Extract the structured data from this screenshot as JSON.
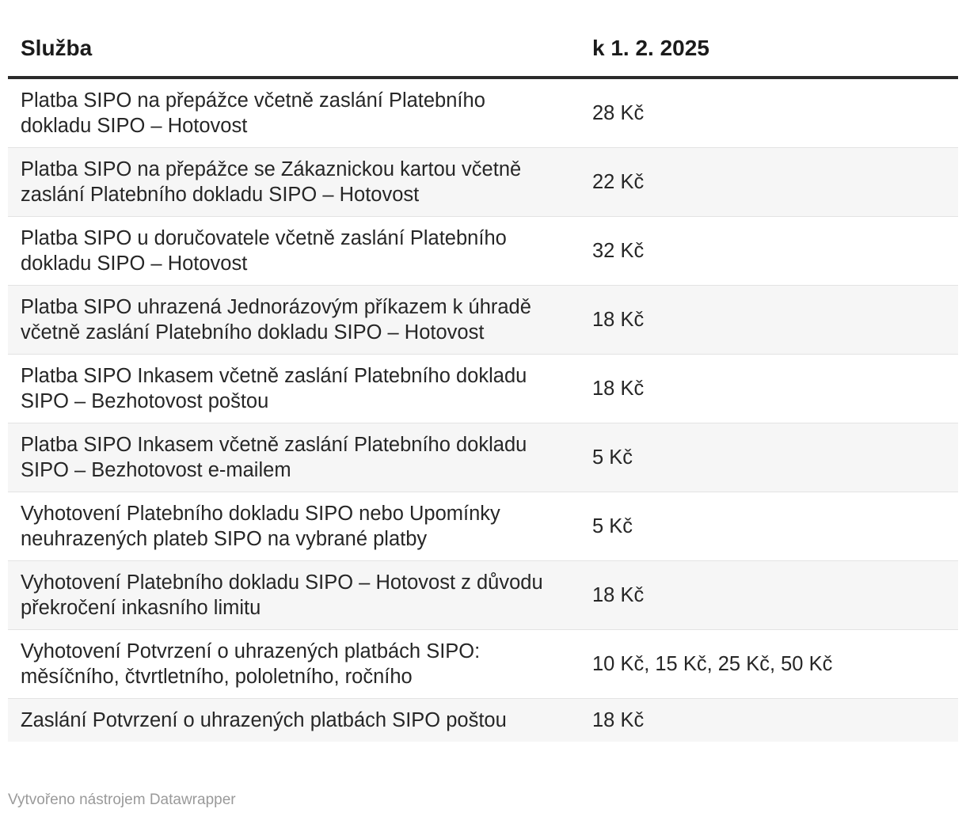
{
  "table": {
    "headers": [
      "Služba",
      "k 1. 2. 2025"
    ],
    "rows": [
      {
        "service": "Platba SIPO na přepážce včetně zaslání Platebního dokladu SIPO – Hotovost",
        "price": "28 Kč"
      },
      {
        "service": "Platba SIPO na přepážce se Zákaznickou kartou včetně zaslání Platebního dokladu SIPO – Hotovost",
        "price": "22 Kč"
      },
      {
        "service": "Platba SIPO u doručovatele včetně zaslání Platebního dokladu SIPO – Hotovost",
        "price": "32 Kč"
      },
      {
        "service": "Platba SIPO uhrazená Jednorázovým příkazem k úhradě včetně zaslání Platebního dokladu SIPO – Hotovost",
        "price": "18 Kč"
      },
      {
        "service": "Platba SIPO Inkasem včetně zaslání Platebního dokladu SIPO – Bezhotovost poštou",
        "price": "18 Kč"
      },
      {
        "service": "Platba SIPO Inkasem včetně zaslání Platebního dokladu SIPO – Bezhotovost e-mailem",
        "price": "5 Kč"
      },
      {
        "service": "Vyhotovení Platebního dokladu SIPO nebo Upomínky neuhrazených plateb SIPO na vybrané platby",
        "price": "5 Kč"
      },
      {
        "service": "Vyhotovení Platebního dokladu SIPO – Hotovost z důvodu překročení inkasního limitu",
        "price": "18 Kč"
      },
      {
        "service": "Vyhotovení Potvrzení o uhrazených platbách SIPO: měsíčního, čtvrtletního, pololetního, ročního",
        "price": "10 Kč, 15 Kč, 25 Kč, 50 Kč"
      },
      {
        "service": "Zaslání Potvrzení o uhrazených platbách SIPO poštou",
        "price": "18 Kč"
      }
    ]
  },
  "footer": {
    "credit": "Vytvořeno nástrojem Datawrapper"
  },
  "colors": {
    "header_rule": "#2b2b2b",
    "alt_row_bg": "#f6f6f6",
    "footer_text": "#9a9a9a"
  }
}
